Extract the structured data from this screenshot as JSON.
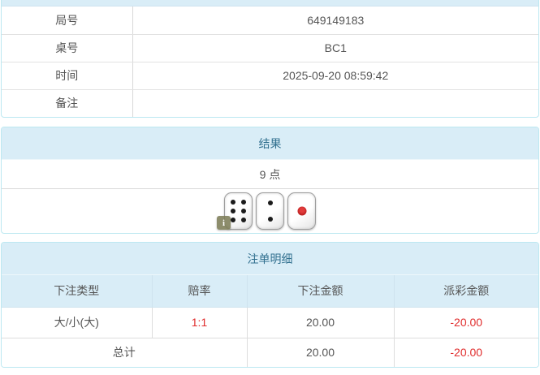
{
  "info_table": {
    "rows": [
      {
        "label": "局号",
        "value": "649149183"
      },
      {
        "label": "桌号",
        "value": "BC1"
      },
      {
        "label": "时间",
        "value": "2025-09-20 08:59:42"
      },
      {
        "label": "备注",
        "value": ""
      }
    ]
  },
  "result_panel": {
    "title": "结果",
    "points": "9 点",
    "dice": [
      6,
      2,
      1
    ],
    "info_badge": "i"
  },
  "bets_panel": {
    "title": "注单明细",
    "columns": [
      "下注类型",
      "赔率",
      "下注金额",
      "派彩金额"
    ],
    "rows": [
      {
        "type": "大/小(大)",
        "odds": "1:1",
        "bet": "20.00",
        "payout": "-20.00"
      }
    ],
    "total": {
      "label": "总计",
      "bet": "20.00",
      "payout": "-20.00"
    }
  },
  "colors": {
    "heading_bg": "#d9edf7",
    "heading_text": "#31708f",
    "panel_border": "#bce8f1",
    "negative_text": "#e02d2d",
    "body_text": "#555555"
  }
}
